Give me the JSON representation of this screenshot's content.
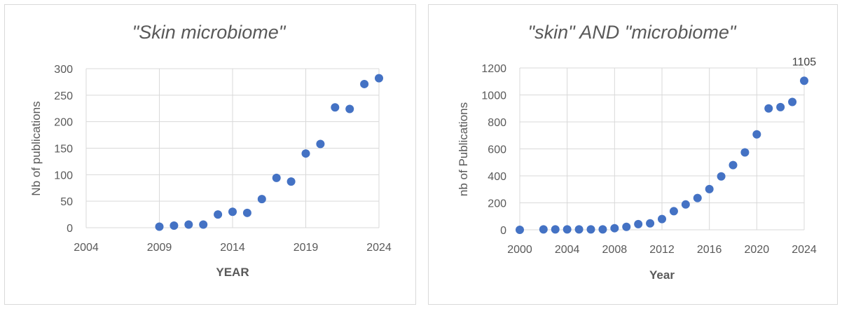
{
  "chart_data": [
    {
      "type": "scatter",
      "title": "\"Skin microbiome\"",
      "xlabel": "YEAR",
      "ylabel": "Nb of publications",
      "xlim": [
        2004,
        2024
      ],
      "ylim": [
        0,
        300
      ],
      "xticks": [
        "2004",
        "2009",
        "2014",
        "2019",
        "2024"
      ],
      "yticks": [
        "0",
        "50",
        "100",
        "150",
        "200",
        "250",
        "300"
      ],
      "grid": true,
      "color": "#4472c4",
      "x": [
        2009,
        2010,
        2011,
        2012,
        2013,
        2014,
        2015,
        2016,
        2017,
        2018,
        2019,
        2020,
        2021,
        2022,
        2023,
        2024
      ],
      "y": [
        2,
        4,
        6,
        6,
        25,
        30,
        28,
        54,
        94,
        87,
        140,
        158,
        227,
        224,
        271,
        282
      ]
    },
    {
      "type": "scatter",
      "title": "\"skin\" AND \"microbiome\"",
      "xlabel": "Year",
      "ylabel": "nb of Publications",
      "xlim": [
        2000,
        2024
      ],
      "ylim": [
        0,
        1200
      ],
      "xticks": [
        "2000",
        "2004",
        "2008",
        "2012",
        "2016",
        "2020",
        "2024"
      ],
      "yticks": [
        "0",
        "200",
        "400",
        "600",
        "800",
        "1000",
        "1200"
      ],
      "grid": true,
      "color": "#4472c4",
      "x": [
        2000,
        2002,
        2003,
        2004,
        2005,
        2006,
        2007,
        2008,
        2009,
        2010,
        2011,
        2012,
        2013,
        2014,
        2015,
        2016,
        2017,
        2018,
        2019,
        2020,
        2021,
        2022,
        2023,
        2024
      ],
      "y": [
        0,
        3,
        3,
        3,
        3,
        3,
        3,
        12,
        22,
        42,
        48,
        80,
        138,
        188,
        236,
        302,
        396,
        480,
        574,
        708,
        900,
        910,
        948,
        1105
      ],
      "annotations": [
        {
          "x": 2024,
          "y": 1105,
          "text": "1105"
        }
      ]
    }
  ]
}
